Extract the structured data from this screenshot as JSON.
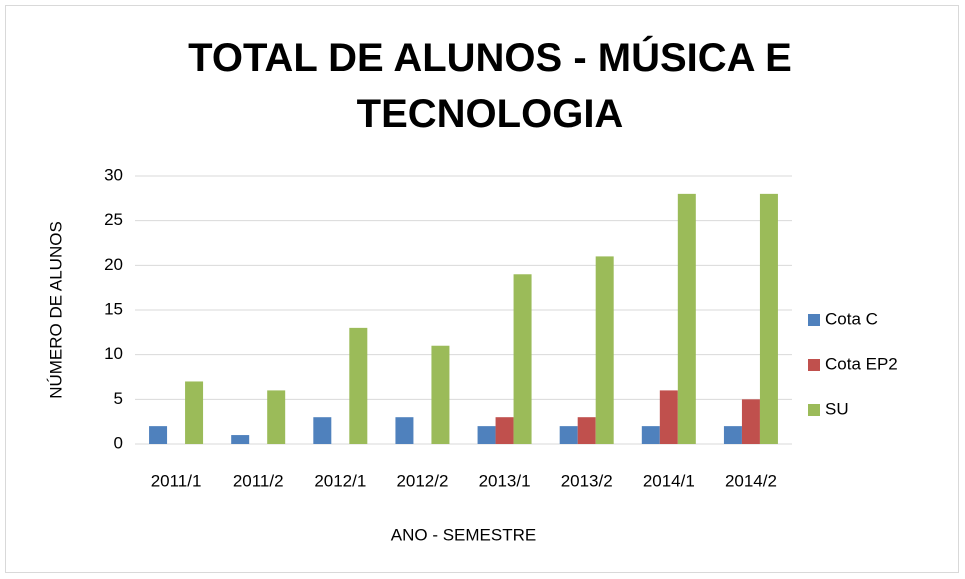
{
  "chart_data": {
    "type": "bar",
    "title": "TOTAL DE ALUNOS - MÚSICA E TECNOLOGIA",
    "x_label": "ANO - SEMESTRE",
    "y_label": "NÚMERO DE ALUNOS",
    "categories": [
      "2011/1",
      "2011/2",
      "2012/1",
      "2012/2",
      "2013/1",
      "2013/2",
      "2014/1",
      "2014/2"
    ],
    "series": [
      {
        "name": "Cota C",
        "color": "#4f81bd",
        "values": [
          2,
          1,
          3,
          3,
          2,
          2,
          2,
          2
        ]
      },
      {
        "name": "Cota EP2",
        "color": "#c0504d",
        "values": [
          null,
          null,
          null,
          null,
          3,
          3,
          6,
          5
        ]
      },
      {
        "name": "SU",
        "color": "#9bbb59",
        "values": [
          7,
          6,
          13,
          11,
          19,
          21,
          28,
          28
        ]
      }
    ],
    "ylim": [
      0,
      30
    ],
    "yticks": [
      0,
      5,
      10,
      15,
      20,
      25,
      30
    ],
    "grid": true,
    "legend": "right"
  }
}
